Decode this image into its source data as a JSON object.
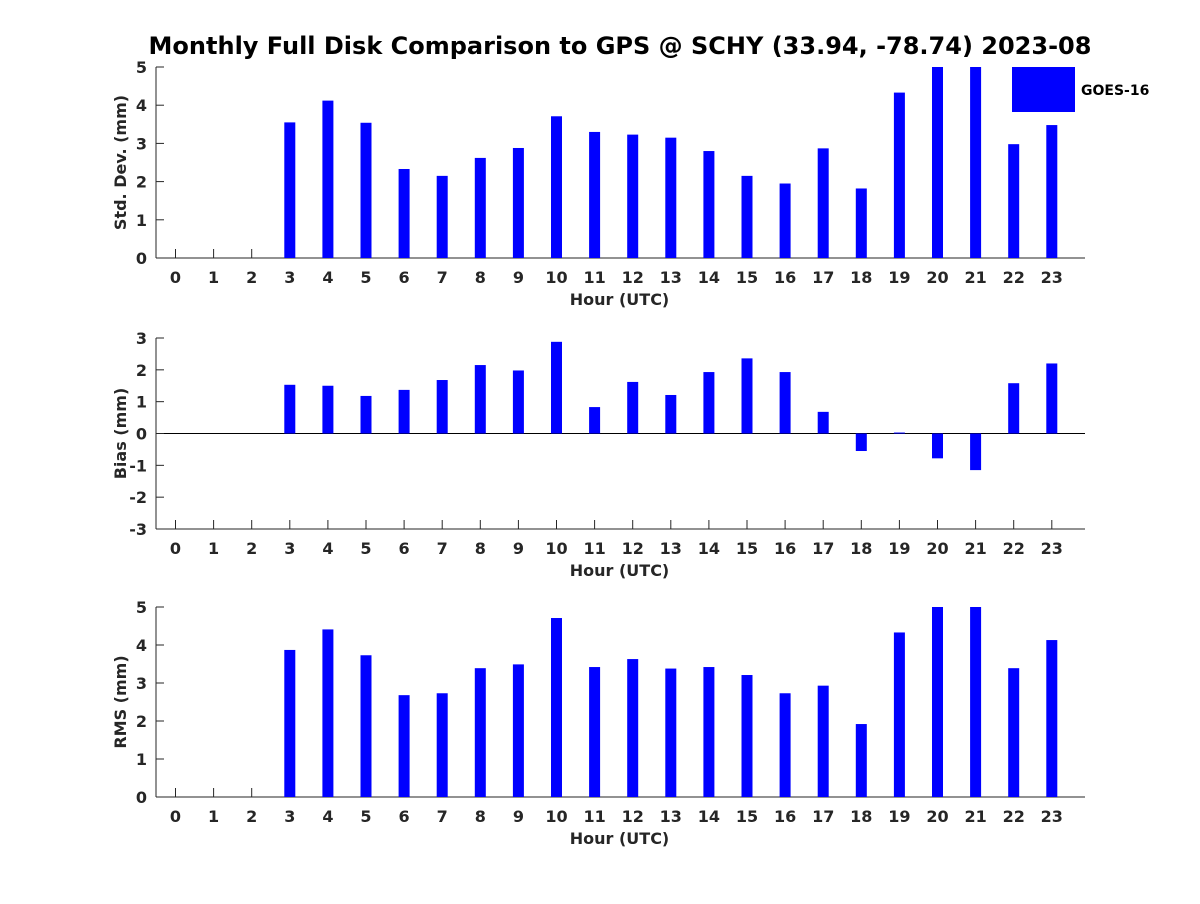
{
  "title": "Monthly Full Disk Comparison to GPS @ SCHY (33.94, -78.74) 2023-08",
  "colors": {
    "bar": "#0000ff",
    "axis": "#262626",
    "background": "#ffffff"
  },
  "legend": {
    "label": "GOES-16",
    "placement": "top-right"
  },
  "chart_data": [
    {
      "type": "bar",
      "xlabel": "Hour (UTC)",
      "ylabel": "Std. Dev. (mm)",
      "categories": [
        "0",
        "1",
        "2",
        "3",
        "4",
        "5",
        "6",
        "7",
        "8",
        "9",
        "10",
        "11",
        "12",
        "13",
        "14",
        "15",
        "16",
        "17",
        "18",
        "19",
        "20",
        "21",
        "22",
        "23"
      ],
      "ylim": [
        0,
        5
      ],
      "yticks": [
        "0",
        "1",
        "2",
        "3",
        "4",
        "5"
      ],
      "grid": false,
      "series": [
        {
          "name": "GOES-16",
          "values": [
            null,
            null,
            null,
            3.55,
            4.12,
            3.54,
            2.33,
            2.15,
            2.62,
            2.88,
            3.71,
            3.3,
            3.23,
            3.15,
            2.8,
            2.15,
            1.95,
            2.87,
            1.82,
            4.33,
            5.0,
            5.0,
            2.98,
            3.48
          ]
        }
      ]
    },
    {
      "type": "bar",
      "xlabel": "Hour (UTC)",
      "ylabel": "Bias (mm)",
      "categories": [
        "0",
        "1",
        "2",
        "3",
        "4",
        "5",
        "6",
        "7",
        "8",
        "9",
        "10",
        "11",
        "12",
        "13",
        "14",
        "15",
        "16",
        "17",
        "18",
        "19",
        "20",
        "21",
        "22",
        "23"
      ],
      "ylim": [
        -3,
        3
      ],
      "yticks": [
        "-3",
        "-2",
        "-1",
        "0",
        "1",
        "2",
        "3"
      ],
      "grid": false,
      "series": [
        {
          "name": "GOES-16",
          "values": [
            null,
            null,
            null,
            1.53,
            1.5,
            1.18,
            1.37,
            1.68,
            2.15,
            1.98,
            2.88,
            0.83,
            1.62,
            1.21,
            1.93,
            2.36,
            1.93,
            0.68,
            -0.55,
            0.03,
            -0.78,
            -1.15,
            1.58,
            2.2
          ]
        }
      ]
    },
    {
      "type": "bar",
      "xlabel": "Hour (UTC)",
      "ylabel": "RMS (mm)",
      "categories": [
        "0",
        "1",
        "2",
        "3",
        "4",
        "5",
        "6",
        "7",
        "8",
        "9",
        "10",
        "11",
        "12",
        "13",
        "14",
        "15",
        "16",
        "17",
        "18",
        "19",
        "20",
        "21",
        "22",
        "23"
      ],
      "ylim": [
        0,
        5
      ],
      "yticks": [
        "0",
        "1",
        "2",
        "3",
        "4",
        "5"
      ],
      "grid": false,
      "series": [
        {
          "name": "GOES-16",
          "values": [
            null,
            null,
            null,
            3.87,
            4.41,
            3.73,
            2.68,
            2.73,
            3.39,
            3.49,
            4.71,
            3.42,
            3.63,
            3.38,
            3.42,
            3.21,
            2.73,
            2.93,
            1.92,
            4.33,
            5.0,
            5.0,
            3.39,
            4.13
          ]
        }
      ]
    }
  ]
}
